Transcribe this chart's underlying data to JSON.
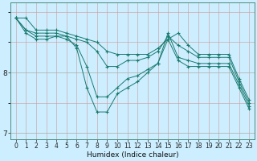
{
  "title": "",
  "xlabel": "Humidex (Indice chaleur)",
  "bg_color": "#cceeff",
  "line_color": "#1a7a6e",
  "series": [
    {
      "x": [
        0,
        1,
        2,
        3,
        4,
        5,
        6,
        7,
        8,
        9,
        10,
        11,
        12,
        13,
        14,
        15,
        16,
        17,
        18,
        19,
        20,
        21,
        22,
        23
      ],
      "y": [
        8.9,
        8.9,
        8.7,
        8.7,
        8.7,
        8.65,
        8.6,
        8.55,
        8.5,
        8.35,
        8.3,
        8.3,
        8.3,
        8.3,
        8.4,
        8.55,
        8.65,
        8.45,
        8.3,
        8.3,
        8.3,
        8.3,
        7.9,
        7.55
      ]
    },
    {
      "x": [
        0,
        1,
        2,
        3,
        4,
        5,
        6,
        7,
        8,
        9,
        10,
        11,
        12,
        13,
        14,
        15,
        16,
        17,
        18,
        19,
        20,
        21,
        22,
        23
      ],
      "y": [
        8.9,
        8.7,
        8.65,
        8.65,
        8.65,
        8.6,
        8.55,
        8.5,
        8.35,
        8.1,
        8.1,
        8.2,
        8.2,
        8.25,
        8.35,
        8.6,
        8.45,
        8.35,
        8.25,
        8.25,
        8.25,
        8.25,
        7.85,
        7.5
      ]
    },
    {
      "x": [
        0,
        1,
        2,
        3,
        4,
        5,
        6,
        7,
        8,
        9,
        10,
        11,
        12,
        13,
        14,
        15,
        16,
        17,
        18,
        19,
        20,
        21,
        22,
        23
      ],
      "y": [
        8.9,
        8.7,
        8.6,
        8.6,
        8.6,
        8.55,
        8.45,
        8.1,
        7.6,
        7.6,
        7.75,
        7.9,
        7.95,
        8.05,
        8.15,
        8.65,
        8.25,
        8.2,
        8.15,
        8.15,
        8.15,
        8.15,
        7.8,
        7.45
      ]
    },
    {
      "x": [
        0,
        1,
        2,
        3,
        4,
        5,
        6,
        7,
        8,
        9,
        10,
        11,
        12,
        13,
        14,
        15,
        16,
        17,
        18,
        19,
        20,
        21,
        22,
        23
      ],
      "y": [
        8.9,
        8.65,
        8.55,
        8.55,
        8.6,
        8.6,
        8.4,
        7.75,
        7.35,
        7.35,
        7.65,
        7.75,
        7.85,
        8.0,
        8.15,
        8.55,
        8.2,
        8.1,
        8.1,
        8.1,
        8.1,
        8.1,
        7.75,
        7.4
      ]
    }
  ],
  "ylim": [
    6.9,
    9.15
  ],
  "xlim": [
    -0.5,
    23.5
  ],
  "yticks": [
    7.0,
    8.0
  ],
  "xticks": [
    0,
    1,
    2,
    3,
    4,
    5,
    6,
    7,
    8,
    9,
    10,
    11,
    12,
    13,
    14,
    15,
    16,
    17,
    18,
    19,
    20,
    21,
    22,
    23
  ],
  "xlabel_fontsize": 6.5,
  "tick_fontsize": 5.5,
  "ytick_fontsize": 6.5
}
